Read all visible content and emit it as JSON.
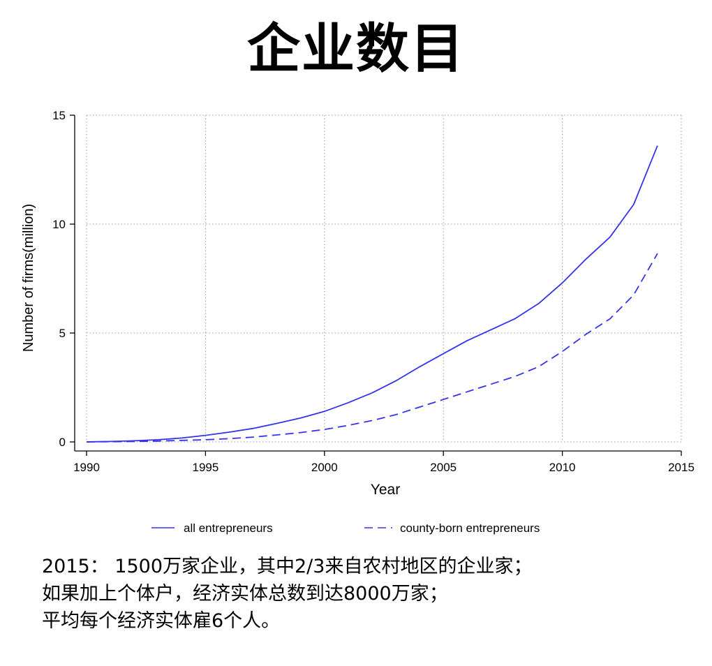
{
  "slide": {
    "title": "企业数目",
    "notes": [
      "2015：  1500万家企业，其中2/3来自农村地区的企业家；",
      "如果加上个体户，经济实体总数到达8000万家；",
      "平均每个经济实体雇6个人。"
    ]
  },
  "chart_data": {
    "type": "line",
    "xlabel": "Year",
    "ylabel": "Number of firms(million)",
    "xlim": [
      1990,
      2015
    ],
    "ylim": [
      0,
      15
    ],
    "xticks": [
      1990,
      1995,
      2000,
      2005,
      2010,
      2015
    ],
    "yticks": [
      0,
      5,
      10,
      15
    ],
    "grid": true,
    "legend_position": "bottom",
    "x": [
      1990,
      1991,
      1992,
      1993,
      1994,
      1995,
      1996,
      1997,
      1998,
      1999,
      2000,
      2001,
      2002,
      2003,
      2004,
      2005,
      2006,
      2007,
      2008,
      2009,
      2010,
      2011,
      2012,
      2013,
      2014
    ],
    "series": [
      {
        "name": "all entrepreneurs",
        "style": "solid",
        "color": "#3333ee",
        "values": [
          0.0,
          0.02,
          0.05,
          0.1,
          0.18,
          0.3,
          0.45,
          0.62,
          0.85,
          1.1,
          1.4,
          1.8,
          2.25,
          2.8,
          3.45,
          4.05,
          4.65,
          5.15,
          5.65,
          6.35,
          7.3,
          8.4,
          9.4,
          10.9,
          13.6
        ]
      },
      {
        "name": "county-born entrepreneurs",
        "style": "dashed",
        "color": "#3333ee",
        "values": [
          0.0,
          0.01,
          0.02,
          0.04,
          0.07,
          0.1,
          0.15,
          0.22,
          0.32,
          0.43,
          0.57,
          0.76,
          0.98,
          1.25,
          1.6,
          1.95,
          2.3,
          2.65,
          3.0,
          3.45,
          4.15,
          4.95,
          5.65,
          6.75,
          8.65
        ]
      }
    ]
  }
}
